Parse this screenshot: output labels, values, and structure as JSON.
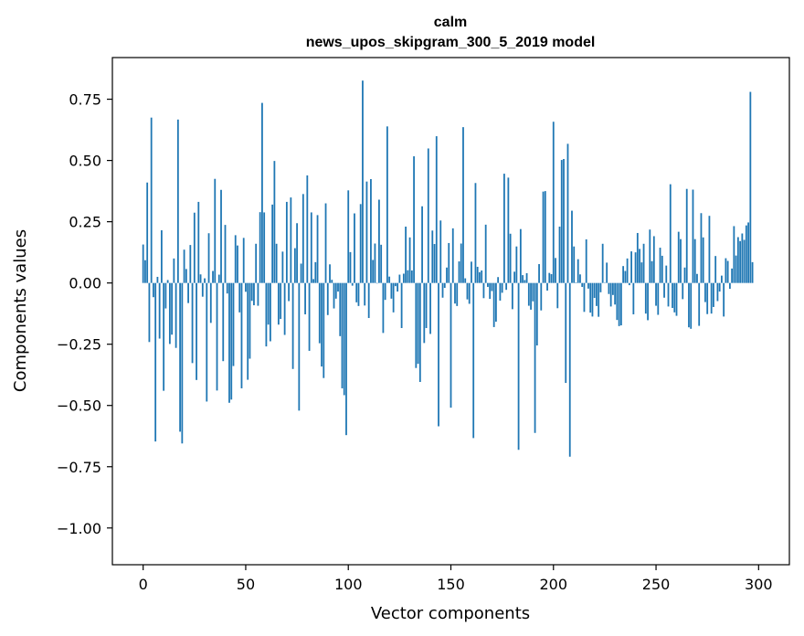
{
  "chart_data": {
    "type": "bar",
    "title": "calm",
    "subtitle": "news_upos_skipgram_300_5_2019 model",
    "xlabel": "Vector components",
    "ylabel": "Components values",
    "xlim": [
      -15,
      315
    ],
    "ylim": [
      -1.15,
      0.92
    ],
    "xticks": [
      0,
      50,
      100,
      150,
      200,
      250,
      300
    ],
    "yticks": [
      -1.0,
      -0.75,
      -0.5,
      -0.25,
      0.0,
      0.25,
      0.5,
      0.75
    ],
    "ytick_labels": [
      "−1.00",
      "−0.75",
      "−0.50",
      "−0.25",
      "0.00",
      "0.25",
      "0.50",
      "0.75"
    ],
    "bar_color": "#1f77b4",
    "grid": false,
    "values": [
      0.157,
      0.093,
      0.41,
      -0.241,
      0.675,
      -0.058,
      -0.647,
      0.025,
      -0.227,
      0.215,
      -0.44,
      -0.104,
      0.012,
      -0.249,
      -0.211,
      0.1,
      -0.265,
      0.667,
      -0.607,
      -0.655,
      0.136,
      0.057,
      -0.082,
      0.155,
      -0.327,
      0.287,
      -0.396,
      0.331,
      0.035,
      -0.056,
      0.019,
      -0.484,
      0.203,
      -0.163,
      0.049,
      0.425,
      -0.439,
      0.034,
      0.38,
      -0.319,
      0.237,
      -0.043,
      -0.489,
      -0.476,
      -0.339,
      0.195,
      0.153,
      -0.12,
      -0.43,
      0.184,
      -0.036,
      -0.395,
      -0.309,
      -0.073,
      -0.091,
      0.16,
      -0.093,
      0.289,
      0.735,
      0.288,
      -0.259,
      -0.17,
      -0.238,
      0.32,
      0.498,
      0.16,
      -0.17,
      -0.147,
      0.128,
      -0.212,
      0.331,
      -0.074,
      0.349,
      -0.351,
      0.142,
      0.244,
      -0.521,
      0.079,
      0.363,
      -0.128,
      0.439,
      -0.277,
      0.288,
      0.016,
      0.085,
      0.277,
      -0.246,
      -0.341,
      -0.388,
      0.325,
      -0.131,
      0.076,
      0.013,
      -0.104,
      -0.064,
      -0.035,
      -0.217,
      -0.43,
      -0.458,
      -0.621,
      0.378,
      0.126,
      -0.011,
      0.284,
      -0.079,
      -0.094,
      0.322,
      0.826,
      -0.092,
      0.414,
      -0.143,
      0.424,
      0.094,
      0.161,
      -0.002,
      0.34,
      0.156,
      -0.204,
      -0.069,
      0.639,
      0.026,
      -0.064,
      -0.12,
      -0.013,
      -0.035,
      0.034,
      -0.184,
      0.038,
      0.23,
      0.052,
      0.186,
      0.051,
      0.517,
      -0.347,
      -0.33,
      -0.404,
      0.313,
      -0.245,
      -0.184,
      0.549,
      -0.208,
      0.214,
      0.159,
      0.599,
      -0.585,
      0.255,
      -0.06,
      -0.02,
      0.063,
      0.163,
      -0.509,
      0.223,
      -0.084,
      -0.094,
      0.088,
      0.161,
      0.636,
      0.019,
      -0.067,
      -0.085,
      0.087,
      -0.633,
      0.408,
      0.066,
      0.044,
      0.051,
      -0.062,
      0.238,
      -0.016,
      -0.065,
      -0.033,
      -0.18,
      -0.158,
      0.024,
      -0.072,
      -0.04,
      0.446,
      -0.028,
      0.43,
      0.201,
      -0.107,
      0.046,
      0.149,
      -0.681,
      0.22,
      0.032,
      0.012,
      0.04,
      -0.093,
      -0.109,
      -0.075,
      -0.612,
      -0.255,
      0.077,
      -0.112,
      0.373,
      0.375,
      -0.031,
      0.041,
      0.036,
      0.658,
      0.102,
      -0.103,
      0.23,
      0.502,
      0.506,
      -0.408,
      0.568,
      -0.709,
      0.295,
      0.149,
      0.002,
      0.097,
      0.035,
      -0.016,
      -0.118,
      0.178,
      -0.023,
      -0.121,
      -0.137,
      -0.061,
      -0.094,
      -0.138,
      -0.038,
      0.16,
      0.001,
      0.083,
      -0.045,
      -0.096,
      -0.049,
      -0.088,
      -0.151,
      -0.176,
      -0.173,
      0.069,
      0.049,
      0.1,
      -0.009,
      0.129,
      -0.128,
      0.125,
      0.204,
      0.139,
      0.084,
      0.16,
      -0.125,
      -0.152,
      0.218,
      0.089,
      0.191,
      -0.093,
      -0.13,
      0.144,
      0.111,
      -0.06,
      0.071,
      -0.096,
      0.403,
      -0.102,
      -0.12,
      -0.134,
      0.209,
      0.179,
      -0.066,
      0.063,
      0.384,
      -0.181,
      -0.187,
      0.381,
      0.179,
      0.037,
      -0.175,
      0.285,
      0.186,
      -0.078,
      -0.127,
      0.274,
      -0.125,
      -0.098,
      0.11,
      -0.074,
      -0.035,
      0.03,
      -0.137,
      0.101,
      0.09,
      -0.024,
      0.059,
      0.232,
      0.112,
      0.187,
      0.171,
      0.202,
      0.176,
      0.235,
      0.247,
      0.78,
      0.085
    ]
  }
}
